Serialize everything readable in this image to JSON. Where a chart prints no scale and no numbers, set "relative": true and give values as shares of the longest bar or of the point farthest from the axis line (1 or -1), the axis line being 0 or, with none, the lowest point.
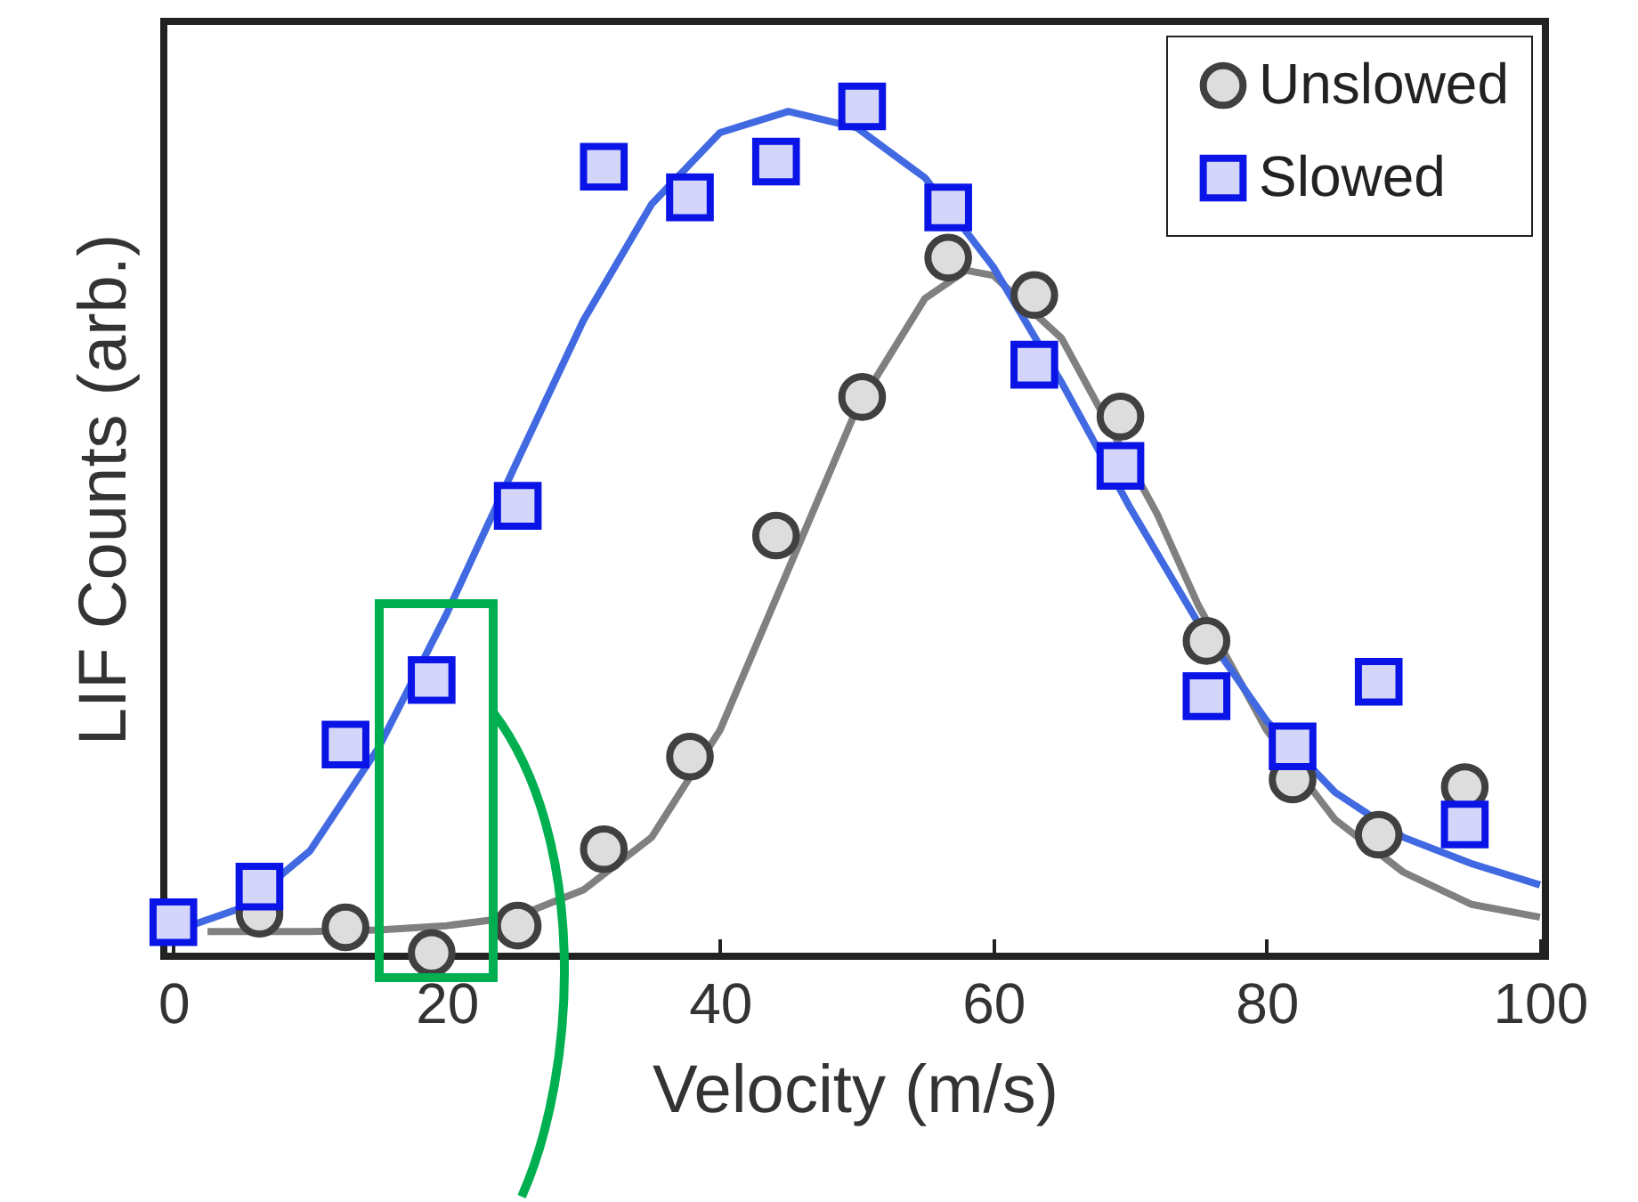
{
  "chart_data": {
    "type": "scatter",
    "xlabel": "Velocity (m/s)",
    "ylabel": "LIF Counts (arb.)",
    "xlim": [
      -0.7,
      100.4
    ],
    "xticks": [
      0,
      20,
      40,
      60,
      80,
      100
    ],
    "relative": true,
    "legend": "top right",
    "series": [
      {
        "type": "line",
        "marker": "none",
        "color": "#808080",
        "x": [
          2.5,
          10,
          15,
          20,
          25,
          30,
          35,
          40,
          45,
          50,
          55,
          58,
          60,
          65,
          72,
          75,
          80,
          85,
          90,
          95,
          100
        ],
        "values": [
          0.029,
          0.029,
          0.031,
          0.036,
          0.046,
          0.078,
          0.14,
          0.266,
          0.455,
          0.644,
          0.774,
          0.807,
          0.801,
          0.727,
          0.52,
          0.413,
          0.266,
          0.161,
          0.099,
          0.061,
          0.046
        ]
      },
      {
        "type": "line",
        "marker": "none",
        "color": "#4169e1",
        "x": [
          0,
          5,
          10,
          15,
          20,
          25,
          30,
          35,
          40,
          45,
          50,
          55,
          60,
          65,
          70,
          75,
          80,
          85,
          90,
          95,
          100
        ],
        "values": [
          0.029,
          0.057,
          0.124,
          0.245,
          0.403,
          0.577,
          0.748,
          0.885,
          0.969,
          0.994,
          0.975,
          0.916,
          0.811,
          0.675,
          0.528,
          0.392,
          0.277,
          0.193,
          0.14,
          0.109,
          0.084
        ]
      },
      {
        "name": "Unslowed",
        "marker": "circle",
        "color": "#404040",
        "x": [
          6.3,
          12.6,
          18.9,
          25.2,
          31.5,
          37.8,
          44.1,
          50.4,
          56.7,
          63,
          69.3,
          75.6,
          81.9,
          88.2,
          94.5
        ],
        "values": [
          0.05,
          0.034,
          0.004,
          0.036,
          0.126,
          0.235,
          0.495,
          0.658,
          0.822,
          0.778,
          0.635,
          0.371,
          0.208,
          0.143,
          0.199
        ]
      },
      {
        "name": "Slowed",
        "marker": "square",
        "color": "#0a14e6",
        "x": [
          0,
          6.3,
          12.6,
          18.9,
          25.2,
          31.5,
          37.8,
          44.1,
          50.4,
          56.7,
          63,
          69.3,
          75.6,
          81.9,
          88.2,
          94.5
        ],
        "values": [
          0.04,
          0.082,
          0.249,
          0.325,
          0.53,
          0.929,
          0.893,
          0.935,
          1.0,
          0.881,
          0.696,
          0.577,
          0.306,
          0.247,
          0.323,
          0.155
        ]
      }
    ]
  }
}
